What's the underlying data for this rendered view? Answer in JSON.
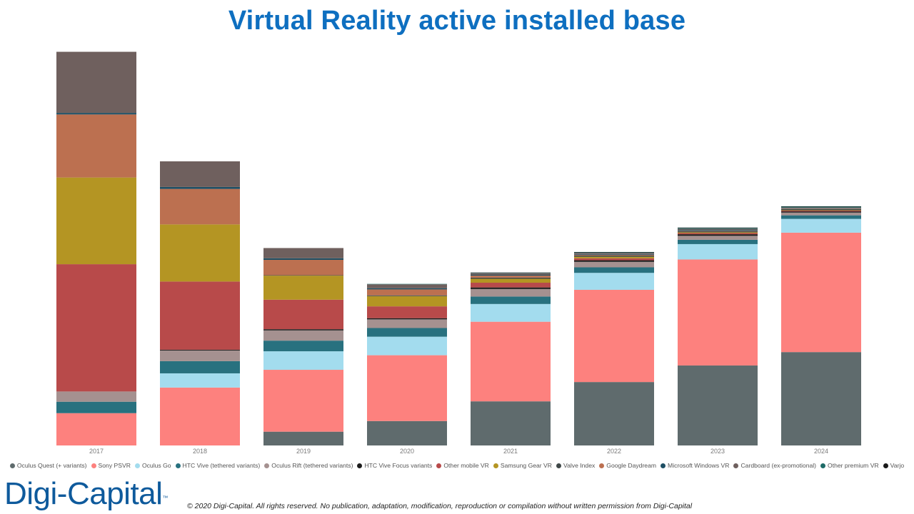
{
  "header": {
    "title": "Virtual Reality active installed base"
  },
  "footer": {
    "logo_text": "Digi-Capital",
    "logo_mark": "™",
    "copyright": "© 2020 Digi-Capital. All rights reserved. No publication, adaptation, modification, reproduction or compilation without written permission from Digi-Capital"
  },
  "chart_data": {
    "type": "bar",
    "stacked": true,
    "title": "Virtual Reality active installed base",
    "xlabel": "",
    "ylabel": "",
    "y_axis_visible": false,
    "grid": false,
    "legend_position": "bottom",
    "ylim": [
      0,
      100
    ],
    "categories": [
      "2017",
      "2018",
      "2019",
      "2020",
      "2021",
      "2022",
      "2023",
      "2024"
    ],
    "series": [
      {
        "name": "Oculus Quest (+ variants)",
        "color": "#5f6b6d",
        "values": [
          0,
          0,
          3.5,
          6.2,
          11.2,
          16.1,
          20.3,
          23.7
        ]
      },
      {
        "name": "Sony PSVR",
        "color": "#fd817e",
        "values": [
          8.2,
          14.7,
          15.7,
          16.7,
          20.2,
          23.4,
          26.9,
          30.3
        ]
      },
      {
        "name": "Oculus Go",
        "color": "#a3dcee",
        "values": [
          0,
          3.6,
          4.7,
          4.7,
          4.5,
          4.3,
          3.9,
          3.5
        ]
      },
      {
        "name": "HTC Vive (tethered variants)",
        "color": "#28717f",
        "values": [
          2.9,
          3.1,
          2.7,
          2.2,
          1.9,
          1.4,
          1.1,
          0.9
        ]
      },
      {
        "name": "Oculus Rift (tethered variants)",
        "color": "#a59190",
        "values": [
          2.6,
          2.7,
          2.6,
          2.2,
          1.9,
          1.4,
          1.0,
          0.7
        ]
      },
      {
        "name": "HTC Vive Focus variants",
        "color": "#1c1c1c",
        "values": [
          0,
          0.2,
          0.3,
          0.3,
          0.4,
          0.4,
          0.4,
          0.3
        ]
      },
      {
        "name": "Other mobile VR",
        "color": "#b84a4a",
        "values": [
          32.3,
          17.3,
          7.5,
          3.0,
          1.2,
          0.5,
          0.3,
          0.2
        ]
      },
      {
        "name": "Samsung Gear VR",
        "color": "#b49523",
        "values": [
          22.0,
          14.5,
          6.1,
          2.6,
          1.0,
          0.4,
          0.2,
          0.1
        ]
      },
      {
        "name": "Valve Index",
        "color": "#3f4848",
        "values": [
          0,
          0,
          0.1,
          0.2,
          0.3,
          0.3,
          0.3,
          0.3
        ]
      },
      {
        "name": "Google Daydream",
        "color": "#bc7050",
        "values": [
          16.0,
          9.0,
          3.9,
          1.5,
          0.5,
          0.2,
          0.1,
          0.1
        ]
      },
      {
        "name": "Microsoft Windows VR",
        "color": "#1e4f64",
        "values": [
          0.4,
          0.5,
          0.4,
          0.3,
          0.2,
          0.2,
          0.2,
          0.1
        ]
      },
      {
        "name": "Cardboard (ex-promotional)",
        "color": "#6f605e",
        "values": [
          15.5,
          6.5,
          2.6,
          1.0,
          0.4,
          0.3,
          0.3,
          0.2
        ]
      },
      {
        "name": "Other premium VR",
        "color": "#1e6b67",
        "values": [
          0,
          0,
          0,
          0.1,
          0.1,
          0.1,
          0.2,
          0.2
        ]
      },
      {
        "name": "Varjo",
        "color": "#1a1a1a",
        "values": [
          0,
          0,
          0,
          0,
          0.1,
          0.1,
          0.1,
          0.1
        ]
      }
    ]
  }
}
